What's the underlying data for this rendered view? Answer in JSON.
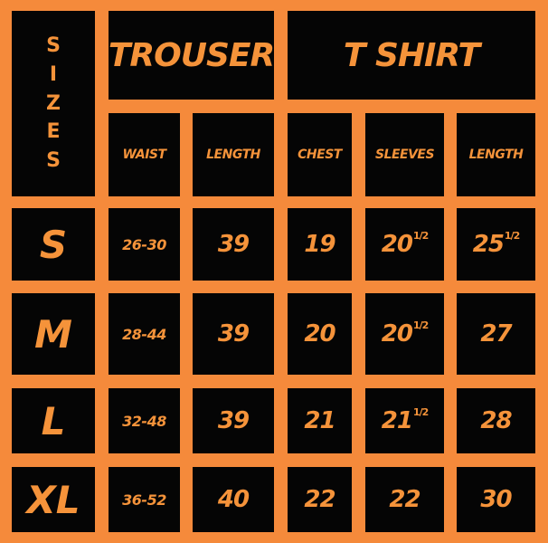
{
  "sizes_label_letters": [
    "S",
    "I",
    "Z",
    "E",
    "S"
  ],
  "groups": {
    "trouser": "TROUSER",
    "tshirt": "T SHIRT"
  },
  "columns": [
    "WAIST",
    "LENGTH",
    "CHEST",
    "SLEEVES",
    "LENGTH"
  ],
  "rows": [
    {
      "size": "S",
      "waist": "26-30",
      "trouser_length": "39",
      "chest": "19",
      "sleeves": "20",
      "sleeves_frac": "1/2",
      "shirt_length": "25",
      "shirt_length_frac": "1/2"
    },
    {
      "size": "M",
      "waist": "28-44",
      "trouser_length": "39",
      "chest": "20",
      "sleeves": "20",
      "sleeves_frac": "1/2",
      "shirt_length": "27"
    },
    {
      "size": "L",
      "waist": "32-48",
      "trouser_length": "39",
      "chest": "21",
      "sleeves": "21",
      "sleeves_frac": "1/2",
      "shirt_length": "28"
    },
    {
      "size": "XL",
      "waist": "36-52",
      "trouser_length": "40",
      "chest": "22",
      "sleeves": "22",
      "shirt_length": "30"
    }
  ],
  "colors": {
    "background": "#f58a3b",
    "cell": "#050505",
    "text": "#f5933a"
  }
}
